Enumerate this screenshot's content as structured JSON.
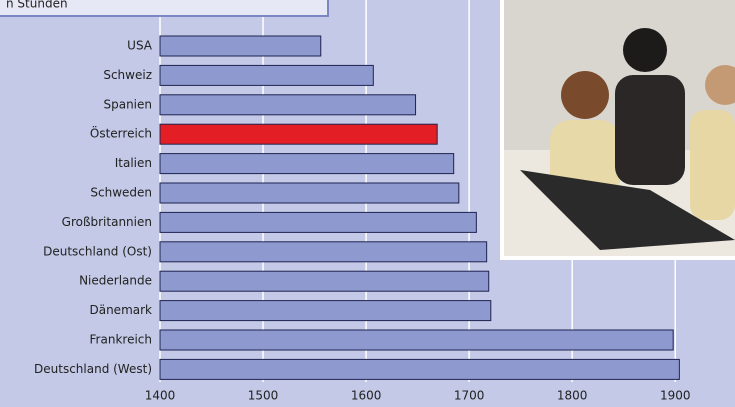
{
  "chart_data": {
    "type": "hbar",
    "title": "n Stunden",
    "categories": [
      "USA",
      "Schweiz",
      "Spanien",
      "Österreich",
      "Italien",
      "Schweden",
      "Großbritannien",
      "Deutschland (Ost)",
      "Niederlande",
      "Dänemark",
      "Frankreich",
      "Deutschland (West)"
    ],
    "values": [
      1556,
      1607,
      1648,
      1669,
      1685,
      1690,
      1707,
      1717,
      1719,
      1721,
      1898,
      1904
    ],
    "colors": [
      "#8e99cf",
      "#8e99cf",
      "#8e99cf",
      "#e31e24",
      "#8e99cf",
      "#8e99cf",
      "#8e99cf",
      "#8e99cf",
      "#8e99cf",
      "#8e99cf",
      "#8e99cf",
      "#8e99cf"
    ],
    "xlim": [
      1400,
      1958
    ],
    "xticks": [
      1400,
      1500,
      1600,
      1700,
      1800,
      1900
    ],
    "grid": true
  }
}
